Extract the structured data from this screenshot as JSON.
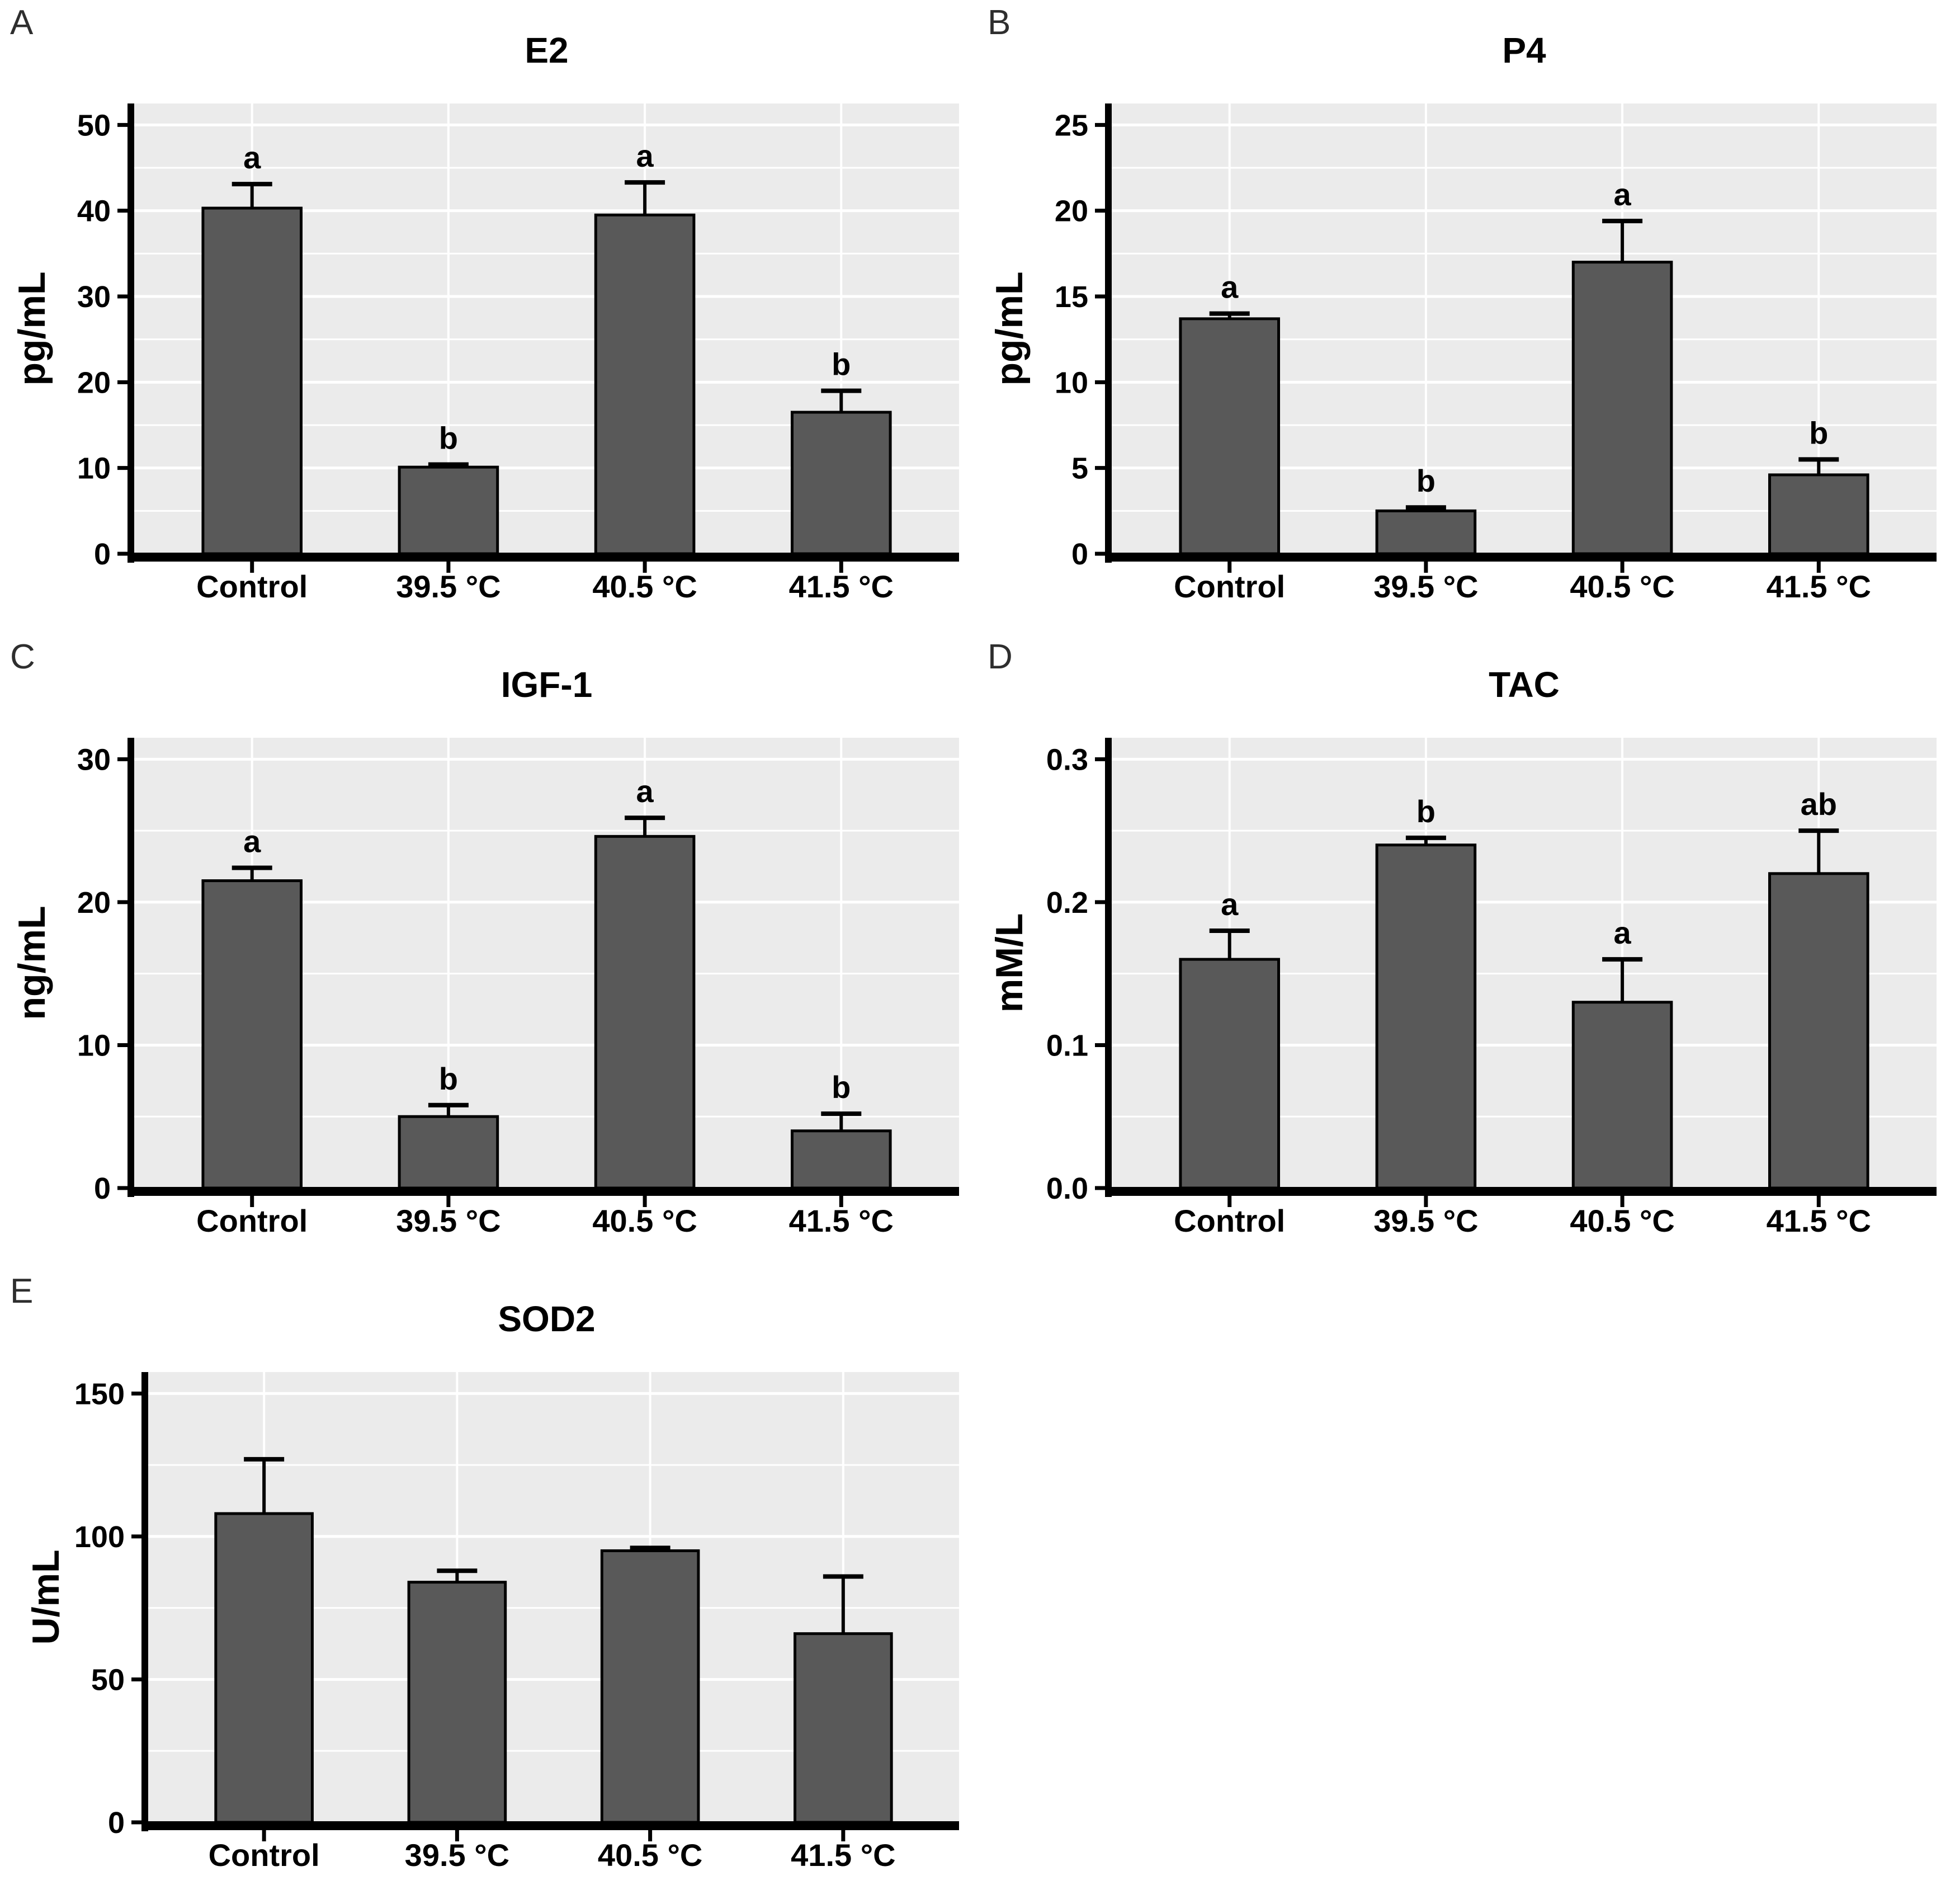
{
  "figure": {
    "panel_labels": [
      "A",
      "B",
      "C",
      "D",
      "E"
    ],
    "x_category_labels": [
      "Control",
      "39.5 °C",
      "40.5 °C",
      "41.5 °C"
    ],
    "colors": {
      "page_background": "#ffffff",
      "plot_background": "#ebebeb",
      "gridline": "#ffffff",
      "bar_fill": "#595959",
      "bar_stroke": "#000000",
      "axis": "#000000",
      "text": "#000000"
    }
  },
  "chart_data": [
    {
      "type": "bar",
      "panel_label": "A",
      "title": "E2",
      "ylabel": "pg/mL",
      "xlabel": "",
      "categories": [
        "Control",
        "39.5 °C",
        "40.5 °C",
        "41.5 °C"
      ],
      "values": [
        40.3,
        10.1,
        39.5,
        16.5
      ],
      "errors_upper": [
        43.1,
        10.4,
        43.3,
        19.0
      ],
      "sig_letters": [
        "a",
        "b",
        "a",
        "b"
      ],
      "ylim": [
        0,
        50
      ],
      "yticks": [
        0,
        10,
        20,
        30,
        40,
        50
      ],
      "ytick_labels": [
        "0",
        "10",
        "20",
        "30",
        "40",
        "50"
      ],
      "yminor_step": 5,
      "grid": true,
      "legend": null
    },
    {
      "type": "bar",
      "panel_label": "B",
      "title": "P4",
      "ylabel": "pg/mL",
      "xlabel": "",
      "categories": [
        "Control",
        "39.5 °C",
        "40.5 °C",
        "41.5 °C"
      ],
      "values": [
        13.7,
        2.5,
        17.0,
        4.6
      ],
      "errors_upper": [
        14.0,
        2.7,
        19.4,
        5.5
      ],
      "sig_letters": [
        "a",
        "b",
        "a",
        "b"
      ],
      "ylim": [
        0,
        25
      ],
      "yticks": [
        0,
        5,
        10,
        15,
        20,
        25
      ],
      "ytick_labels": [
        "0",
        "5",
        "10",
        "15",
        "20",
        "25"
      ],
      "yminor_step": 2.5,
      "grid": true,
      "legend": null
    },
    {
      "type": "bar",
      "panel_label": "C",
      "title": "IGF-1",
      "ylabel": "ng/mL",
      "xlabel": "",
      "categories": [
        "Control",
        "39.5 °C",
        "40.5 °C",
        "41.5 °C"
      ],
      "values": [
        21.5,
        5.0,
        24.6,
        4.0
      ],
      "errors_upper": [
        22.4,
        5.8,
        25.9,
        5.2
      ],
      "sig_letters": [
        "a",
        "b",
        "a",
        "b"
      ],
      "ylim": [
        0,
        30
      ],
      "yticks": [
        0,
        10,
        20,
        30
      ],
      "ytick_labels": [
        "0",
        "10",
        "20",
        "30"
      ],
      "yminor_step": 5,
      "grid": true,
      "legend": null
    },
    {
      "type": "bar",
      "panel_label": "D",
      "title": "TAC",
      "ylabel": "mM/L",
      "xlabel": "",
      "categories": [
        "Control",
        "39.5 °C",
        "40.5 °C",
        "41.5 °C"
      ],
      "values": [
        0.16,
        0.24,
        0.13,
        0.22
      ],
      "errors_upper": [
        0.18,
        0.245,
        0.16,
        0.25
      ],
      "sig_letters": [
        "a",
        "b",
        "a",
        "ab"
      ],
      "ylim": [
        0,
        0.3
      ],
      "yticks": [
        0,
        0.1,
        0.2,
        0.3
      ],
      "ytick_labels": [
        "0.0",
        "0.1",
        "0.2",
        "0.3"
      ],
      "yminor_step": 0.05,
      "grid": true,
      "legend": null
    },
    {
      "type": "bar",
      "panel_label": "E",
      "title": "SOD2",
      "ylabel": "U/mL",
      "xlabel": "",
      "categories": [
        "Control",
        "39.5 °C",
        "40.5 °C",
        "41.5 °C"
      ],
      "values": [
        108,
        84,
        95,
        66
      ],
      "errors_upper": [
        127,
        88,
        96,
        86
      ],
      "sig_letters": null,
      "ylim": [
        0,
        150
      ],
      "yticks": [
        0,
        50,
        100,
        150
      ],
      "ytick_labels": [
        "0",
        "50",
        "100",
        "150"
      ],
      "yminor_step": 25,
      "grid": true,
      "legend": null
    }
  ]
}
